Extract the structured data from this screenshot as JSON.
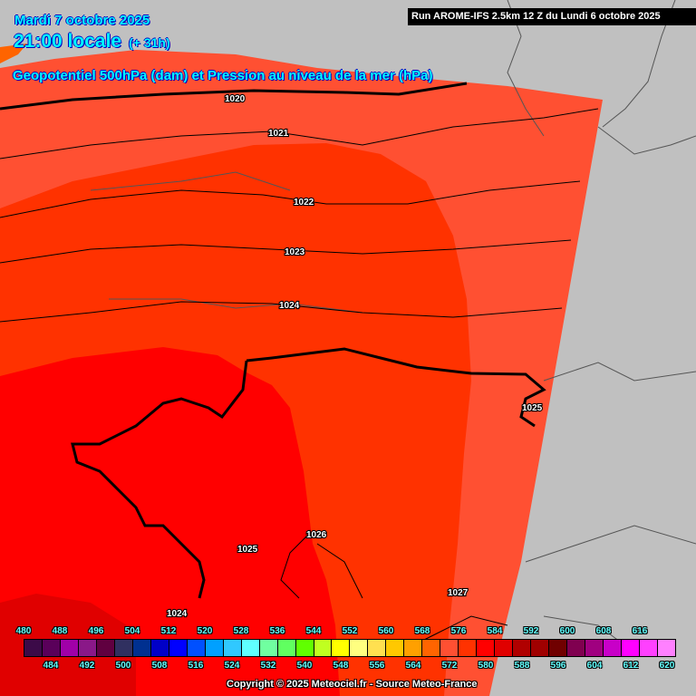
{
  "header": {
    "date": "Mardi 7 octobre 2025",
    "time": "21:00 locale",
    "lead": "(+ 31h)",
    "subtitle": "Geopotentiel 500hPa (dam) et Pression au niveau de la mer (hPa)",
    "run": "Run AROME-IFS 2.5km 12 Z du Lundi 6 octobre 2025"
  },
  "colors": {
    "background": "#c0c0c0",
    "z572": "#ff5032",
    "z576": "#ff3200",
    "z580": "#ff0000",
    "z584": "#e00000",
    "z568": "#ff6400"
  },
  "isobars": [
    {
      "label": "1020"
    },
    {
      "label": "1021"
    },
    {
      "label": "1022"
    },
    {
      "label": "1023"
    },
    {
      "label": "1024"
    },
    {
      "label": "1025"
    },
    {
      "label": "1025"
    },
    {
      "label": "1026"
    },
    {
      "label": "1027"
    },
    {
      "label": "1024"
    }
  ],
  "legend": {
    "values": [
      480,
      484,
      488,
      492,
      496,
      500,
      504,
      508,
      512,
      516,
      520,
      524,
      528,
      532,
      536,
      540,
      544,
      548,
      552,
      556,
      560,
      564,
      568,
      572,
      576,
      580,
      584,
      588,
      592,
      596,
      600,
      604,
      608,
      612,
      616,
      620
    ],
    "colors": [
      "#3c0a48",
      "#5a005a",
      "#a000a8",
      "#8a1888",
      "#600040",
      "#303060",
      "#003090",
      "#0000c8",
      "#0000ff",
      "#0050ff",
      "#00a0ff",
      "#30c8ff",
      "#60ffff",
      "#70ffa0",
      "#60ff60",
      "#60ff00",
      "#c0ff20",
      "#ffff00",
      "#ffff80",
      "#ffe050",
      "#ffc800",
      "#ffa000",
      "#ff6400",
      "#ff5032",
      "#ff3200",
      "#ff0000",
      "#e00000",
      "#b00000",
      "#a00000",
      "#700000",
      "#800050",
      "#a00080",
      "#c800c8",
      "#ff00ff",
      "#ff40ff",
      "#ff80ff"
    ]
  },
  "copyright": "Copyright © 2025 Meteociel.fr - Source Meteo-France"
}
